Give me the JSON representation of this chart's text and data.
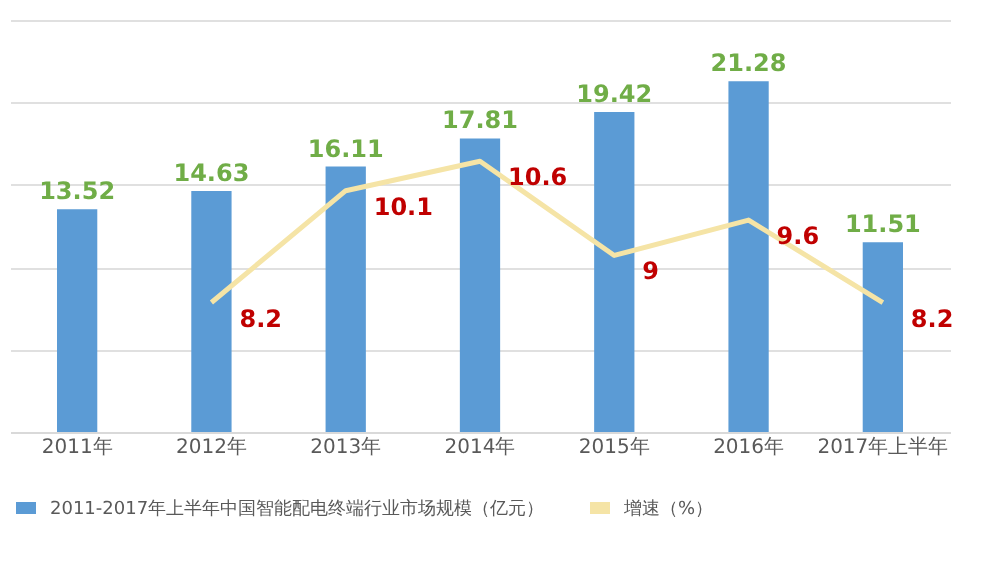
{
  "chart_data": {
    "type": "bar",
    "categories": [
      "2011年",
      "2012年",
      "2013年",
      "2014年",
      "2015年",
      "2016年",
      "2017年上半年"
    ],
    "series": [
      {
        "name": "2011-2017年上半年中国智能配电终端行业市场规模（亿元）",
        "color": "#5b9bd5",
        "values": [
          13.52,
          14.63,
          16.11,
          17.81,
          19.42,
          21.28,
          11.51
        ]
      },
      {
        "name": "增速（%）",
        "type": "line",
        "axis": "y2",
        "color": "#f5e4a6",
        "values": [
          null,
          8.2,
          10.1,
          10.6,
          9,
          9.6,
          8.2
        ]
      }
    ],
    "ylim": [
      0,
      25
    ],
    "yticks": [
      {
        "value": 0,
        "label": null
      },
      {
        "value": 5,
        "label": null
      },
      {
        "value": 10,
        "label": null
      },
      {
        "value": 15,
        "label": null
      },
      {
        "value": 20,
        "label": null
      },
      {
        "value": 25,
        "label": null
      }
    ],
    "y2lim": [
      6,
      13
    ],
    "tick_labels": "x",
    "grid": "y",
    "data_labels": true,
    "legend": "bottom"
  }
}
